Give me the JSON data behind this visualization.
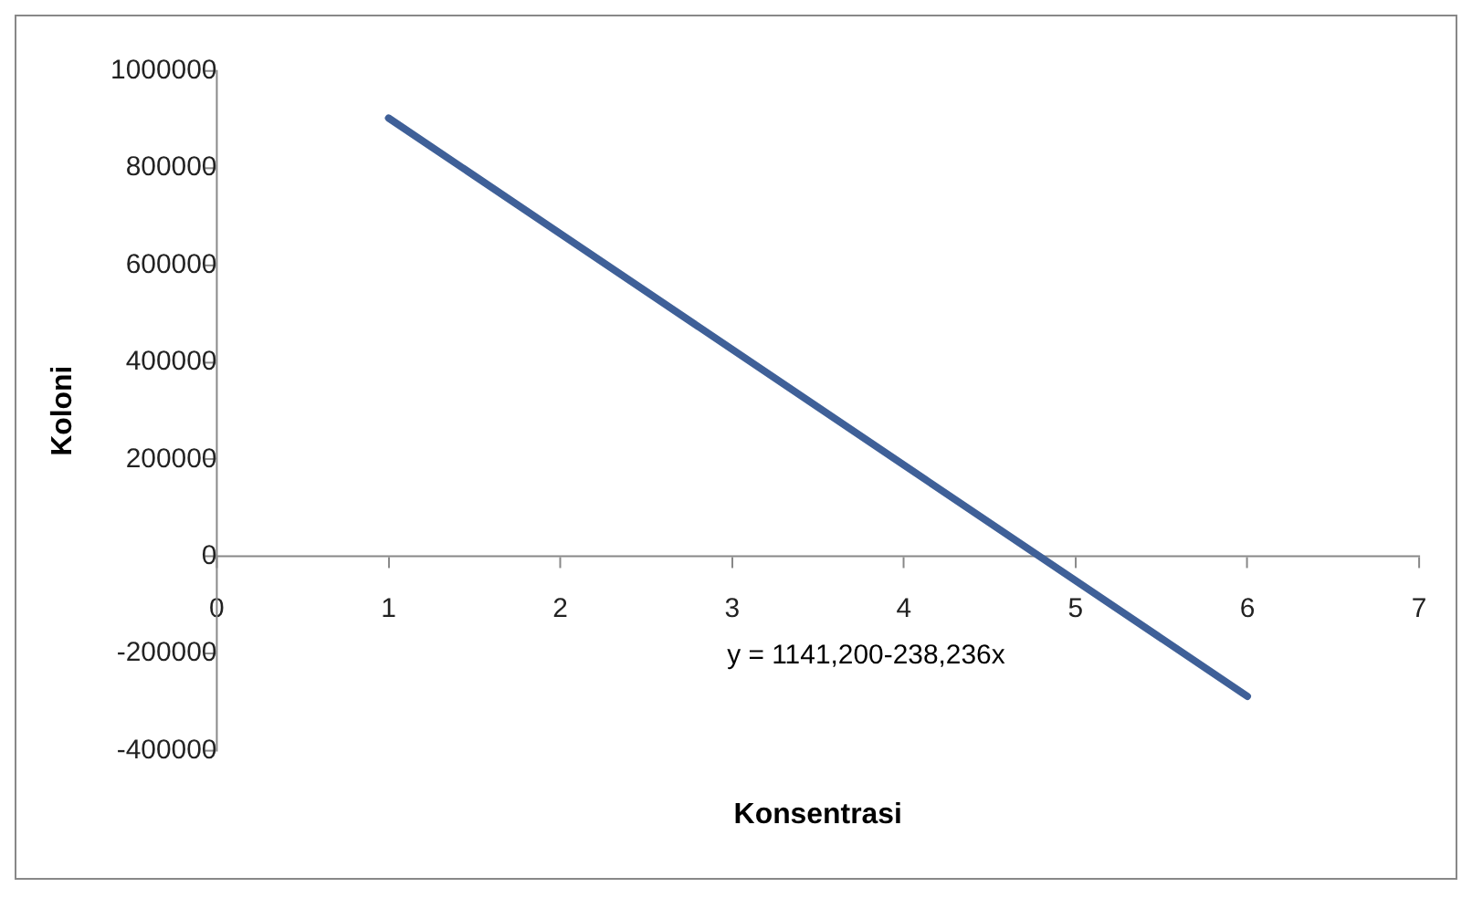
{
  "chart_data": {
    "type": "line",
    "xlabel": "Konsentrasi",
    "ylabel": "Koloni",
    "x": [
      1,
      6
    ],
    "series": [
      {
        "color": "#3f6098",
        "values": [
          903000,
          -288000
        ]
      }
    ],
    "xlim": [
      0,
      7
    ],
    "xticks": [
      0,
      1,
      2,
      3,
      4,
      5,
      6,
      7
    ],
    "ylim": [
      -400000,
      1000000
    ],
    "yticks": [
      -400000,
      -200000,
      0,
      200000,
      400000,
      600000,
      800000,
      1000000
    ],
    "grid": false,
    "legend": false,
    "marker": "none",
    "line_style": "solid",
    "annotations": [
      "y = 1141,200-238,236x"
    ]
  }
}
